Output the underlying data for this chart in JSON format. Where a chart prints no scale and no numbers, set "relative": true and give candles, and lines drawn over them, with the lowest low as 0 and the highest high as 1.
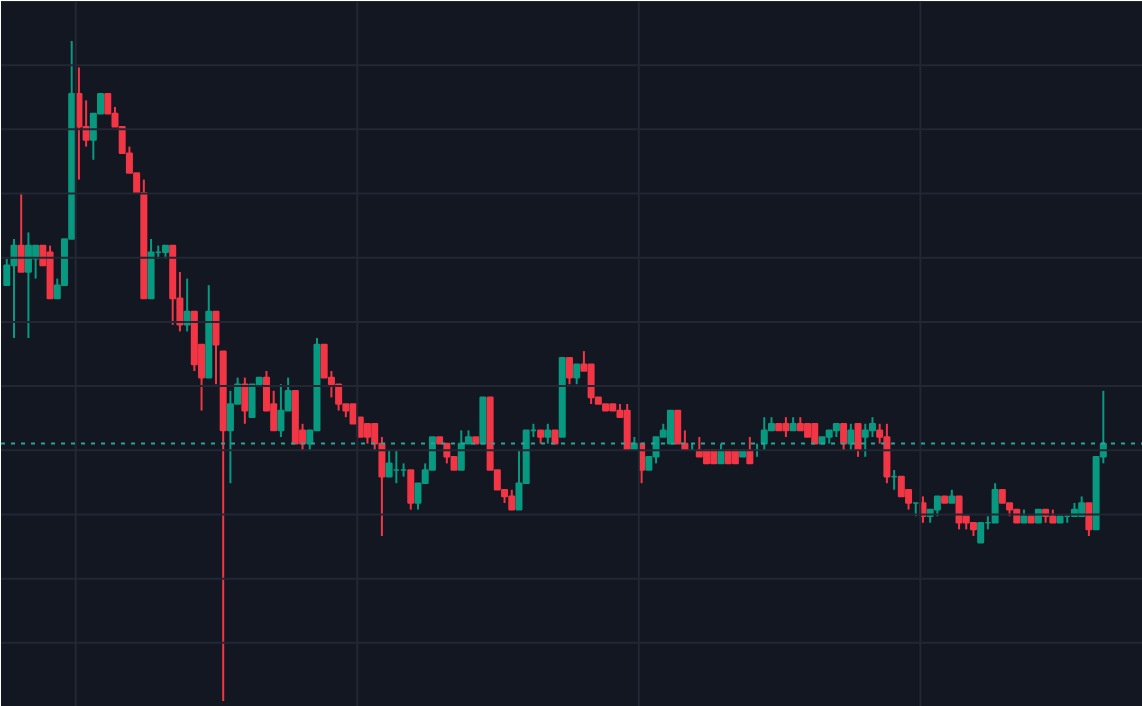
{
  "chart_data": {
    "type": "candlestick",
    "relative": true,
    "grid": true,
    "categories": [
      null,
      null,
      null,
      null,
      null,
      null,
      null,
      null,
      null,
      null,
      null,
      null,
      null,
      null,
      null,
      null,
      null,
      null,
      null,
      null,
      null,
      null,
      null,
      null,
      null,
      null,
      null,
      null,
      null,
      null,
      null,
      null,
      null,
      null,
      null,
      null,
      null,
      null,
      null,
      null,
      null,
      null,
      null,
      null,
      null,
      null,
      null,
      null,
      null,
      null,
      null,
      null,
      null,
      null,
      null,
      null,
      null,
      null,
      null,
      null,
      null,
      null,
      null,
      null,
      null,
      null,
      null,
      null,
      null,
      null,
      null,
      null,
      null,
      null,
      null,
      null,
      null,
      null,
      null,
      null,
      null,
      null,
      null,
      null,
      null,
      null,
      null,
      null,
      null,
      null,
      null,
      null,
      null,
      null,
      null,
      null,
      null,
      null,
      null,
      null,
      null,
      null,
      null,
      null,
      null,
      null,
      null,
      null,
      null,
      null,
      null,
      null,
      null,
      null,
      null,
      null,
      null,
      null,
      null,
      null,
      null,
      null,
      null,
      null,
      null,
      null,
      null,
      null,
      null,
      null,
      null,
      null,
      null,
      null,
      null,
      null,
      null,
      null,
      null,
      null,
      null,
      null,
      null,
      null,
      null,
      null,
      null,
      null,
      null,
      null,
      null,
      null,
      null
    ],
    "ohlc": [
      [
        0.63,
        0.67,
        0.63,
        0.66
      ],
      [
        0.66,
        0.7,
        0.55,
        0.69
      ],
      [
        0.69,
        0.77,
        0.65,
        0.65
      ],
      [
        0.65,
        0.71,
        0.55,
        0.69
      ],
      [
        0.67,
        0.69,
        0.64,
        0.69
      ],
      [
        0.69,
        0.69,
        0.66,
        0.66
      ],
      [
        0.68,
        0.69,
        0.61,
        0.61
      ],
      [
        0.61,
        0.64,
        0.61,
        0.63
      ],
      [
        0.63,
        0.7,
        0.63,
        0.7
      ],
      [
        0.7,
        1.0,
        0.7,
        0.92
      ],
      [
        0.92,
        0.96,
        0.79,
        0.87
      ],
      [
        0.87,
        0.91,
        0.84,
        0.85
      ],
      [
        0.85,
        0.89,
        0.82,
        0.89
      ],
      [
        0.89,
        0.92,
        0.89,
        0.92
      ],
      [
        0.92,
        0.92,
        0.89,
        0.89
      ],
      [
        0.89,
        0.9,
        0.87,
        0.87
      ],
      [
        0.87,
        0.87,
        0.83,
        0.83
      ],
      [
        0.83,
        0.84,
        0.8,
        0.8
      ],
      [
        0.8,
        0.8,
        0.77,
        0.77
      ],
      [
        0.77,
        0.79,
        0.61,
        0.61
      ],
      [
        0.61,
        0.7,
        0.61,
        0.68
      ],
      [
        0.68,
        0.69,
        0.67,
        0.68
      ],
      [
        0.68,
        0.69,
        0.67,
        0.69
      ],
      [
        0.69,
        0.69,
        0.57,
        0.61
      ],
      [
        0.61,
        0.65,
        0.56,
        0.57
      ],
      [
        0.57,
        0.64,
        0.56,
        0.59
      ],
      [
        0.59,
        0.59,
        0.5,
        0.51
      ],
      [
        0.54,
        0.54,
        0.44,
        0.49
      ],
      [
        0.49,
        0.63,
        0.49,
        0.59
      ],
      [
        0.59,
        0.59,
        0.48,
        0.54
      ],
      [
        0.53,
        0.53,
        0.0,
        0.41
      ],
      [
        0.41,
        0.47,
        0.33,
        0.45
      ],
      [
        0.45,
        0.49,
        0.45,
        0.48
      ],
      [
        0.48,
        0.49,
        0.42,
        0.44
      ],
      [
        0.43,
        0.48,
        0.43,
        0.48
      ],
      [
        0.48,
        0.49,
        0.48,
        0.49
      ],
      [
        0.49,
        0.5,
        0.44,
        0.44
      ],
      [
        0.45,
        0.47,
        0.41,
        0.41
      ],
      [
        0.41,
        0.48,
        0.4,
        0.44
      ],
      [
        0.44,
        0.49,
        0.44,
        0.47
      ],
      [
        0.47,
        0.47,
        0.39,
        0.39
      ],
      [
        0.41,
        0.42,
        0.38,
        0.39
      ],
      [
        0.39,
        0.41,
        0.38,
        0.41
      ],
      [
        0.41,
        0.55,
        0.41,
        0.54
      ],
      [
        0.54,
        0.54,
        0.49,
        0.49
      ],
      [
        0.49,
        0.5,
        0.46,
        0.48
      ],
      [
        0.48,
        0.48,
        0.44,
        0.45
      ],
      [
        0.45,
        0.45,
        0.43,
        0.44
      ],
      [
        0.45,
        0.45,
        0.42,
        0.42
      ],
      [
        0.43,
        0.43,
        0.4,
        0.4
      ],
      [
        0.42,
        0.42,
        0.39,
        0.4
      ],
      [
        0.42,
        0.42,
        0.38,
        0.39
      ],
      [
        0.39,
        0.4,
        0.25,
        0.34
      ],
      [
        0.34,
        0.38,
        0.34,
        0.36
      ],
      [
        0.35,
        0.38,
        0.33,
        0.35
      ],
      [
        0.35,
        0.36,
        0.34,
        0.35
      ],
      [
        0.35,
        0.35,
        0.29,
        0.3
      ],
      [
        0.3,
        0.33,
        0.29,
        0.33
      ],
      [
        0.33,
        0.36,
        0.33,
        0.35
      ],
      [
        0.35,
        0.4,
        0.35,
        0.4
      ],
      [
        0.4,
        0.4,
        0.39,
        0.39
      ],
      [
        0.39,
        0.39,
        0.36,
        0.37
      ],
      [
        0.37,
        0.37,
        0.35,
        0.35
      ],
      [
        0.35,
        0.41,
        0.35,
        0.39
      ],
      [
        0.39,
        0.41,
        0.39,
        0.4
      ],
      [
        0.4,
        0.4,
        0.39,
        0.39
      ],
      [
        0.39,
        0.46,
        0.39,
        0.46
      ],
      [
        0.46,
        0.46,
        0.35,
        0.35
      ],
      [
        0.35,
        0.35,
        0.32,
        0.32
      ],
      [
        0.32,
        0.32,
        0.3,
        0.31
      ],
      [
        0.31,
        0.32,
        0.29,
        0.29
      ],
      [
        0.29,
        0.38,
        0.29,
        0.33
      ],
      [
        0.33,
        0.41,
        0.33,
        0.41
      ],
      [
        0.41,
        0.42,
        0.4,
        0.41
      ],
      [
        0.41,
        0.41,
        0.39,
        0.4
      ],
      [
        0.4,
        0.42,
        0.39,
        0.41
      ],
      [
        0.41,
        0.41,
        0.39,
        0.39
      ],
      [
        0.4,
        0.52,
        0.4,
        0.52
      ],
      [
        0.52,
        0.52,
        0.48,
        0.49
      ],
      [
        0.49,
        0.51,
        0.48,
        0.51
      ],
      [
        0.51,
        0.53,
        0.5,
        0.5
      ],
      [
        0.51,
        0.51,
        0.45,
        0.46
      ],
      [
        0.46,
        0.46,
        0.45,
        0.45
      ],
      [
        0.45,
        0.45,
        0.44,
        0.44
      ],
      [
        0.45,
        0.45,
        0.44,
        0.44
      ],
      [
        0.44,
        0.45,
        0.43,
        0.43
      ],
      [
        0.44,
        0.45,
        0.38,
        0.38
      ],
      [
        0.38,
        0.4,
        0.38,
        0.39
      ],
      [
        0.39,
        0.39,
        0.33,
        0.35
      ],
      [
        0.35,
        0.37,
        0.35,
        0.37
      ],
      [
        0.37,
        0.4,
        0.36,
        0.4
      ],
      [
        0.4,
        0.42,
        0.4,
        0.41
      ],
      [
        0.39,
        0.44,
        0.39,
        0.44
      ],
      [
        0.44,
        0.44,
        0.39,
        0.39
      ],
      [
        0.39,
        0.41,
        0.38,
        0.38
      ],
      [
        0.38,
        0.39,
        0.38,
        0.38
      ],
      [
        0.38,
        0.4,
        0.37,
        0.37
      ],
      [
        0.38,
        0.38,
        0.36,
        0.36
      ],
      [
        0.38,
        0.38,
        0.36,
        0.36
      ],
      [
        0.36,
        0.39,
        0.36,
        0.38
      ],
      [
        0.38,
        0.38,
        0.36,
        0.36
      ],
      [
        0.38,
        0.38,
        0.36,
        0.36
      ],
      [
        0.37,
        0.38,
        0.37,
        0.38
      ],
      [
        0.38,
        0.4,
        0.36,
        0.36
      ],
      [
        0.38,
        0.39,
        0.37,
        0.38
      ],
      [
        0.39,
        0.43,
        0.38,
        0.41
      ],
      [
        0.41,
        0.43,
        0.41,
        0.42
      ],
      [
        0.42,
        0.42,
        0.41,
        0.41
      ],
      [
        0.42,
        0.43,
        0.4,
        0.41
      ],
      [
        0.41,
        0.43,
        0.41,
        0.42
      ],
      [
        0.42,
        0.43,
        0.41,
        0.41
      ],
      [
        0.42,
        0.42,
        0.4,
        0.4
      ],
      [
        0.42,
        0.42,
        0.39,
        0.39
      ],
      [
        0.39,
        0.4,
        0.39,
        0.4
      ],
      [
        0.4,
        0.41,
        0.39,
        0.41
      ],
      [
        0.41,
        0.42,
        0.4,
        0.42
      ],
      [
        0.42,
        0.42,
        0.38,
        0.39
      ],
      [
        0.39,
        0.42,
        0.38,
        0.41
      ],
      [
        0.42,
        0.42,
        0.37,
        0.38
      ],
      [
        0.4,
        0.42,
        0.37,
        0.41
      ],
      [
        0.41,
        0.43,
        0.4,
        0.42
      ],
      [
        0.41,
        0.42,
        0.39,
        0.4
      ],
      [
        0.4,
        0.42,
        0.33,
        0.34
      ],
      [
        0.34,
        0.35,
        0.32,
        0.34
      ],
      [
        0.34,
        0.34,
        0.31,
        0.31
      ],
      [
        0.32,
        0.32,
        0.29,
        0.3
      ],
      [
        0.3,
        0.3,
        0.28,
        0.3
      ],
      [
        0.3,
        0.31,
        0.27,
        0.28
      ],
      [
        0.28,
        0.29,
        0.27,
        0.29
      ],
      [
        0.29,
        0.31,
        0.28,
        0.31
      ],
      [
        0.31,
        0.31,
        0.3,
        0.3
      ],
      [
        0.3,
        0.32,
        0.3,
        0.31
      ],
      [
        0.31,
        0.31,
        0.26,
        0.27
      ],
      [
        0.28,
        0.28,
        0.26,
        0.27
      ],
      [
        0.27,
        0.27,
        0.25,
        0.26
      ],
      [
        0.24,
        0.27,
        0.24,
        0.27
      ],
      [
        0.27,
        0.28,
        0.26,
        0.27
      ],
      [
        0.27,
        0.33,
        0.27,
        0.32
      ],
      [
        0.32,
        0.32,
        0.3,
        0.3
      ],
      [
        0.3,
        0.3,
        0.28,
        0.29
      ],
      [
        0.29,
        0.29,
        0.27,
        0.27
      ],
      [
        0.27,
        0.29,
        0.27,
        0.28
      ],
      [
        0.28,
        0.28,
        0.27,
        0.27
      ],
      [
        0.27,
        0.29,
        0.27,
        0.29
      ],
      [
        0.29,
        0.29,
        0.27,
        0.28
      ],
      [
        0.28,
        0.29,
        0.27,
        0.27
      ],
      [
        0.27,
        0.28,
        0.27,
        0.28
      ],
      [
        0.28,
        0.28,
        0.27,
        0.28
      ],
      [
        0.28,
        0.3,
        0.28,
        0.29
      ],
      [
        0.28,
        0.31,
        0.28,
        0.3
      ],
      [
        0.3,
        0.3,
        0.25,
        0.26
      ],
      [
        0.26,
        0.37,
        0.26,
        0.37
      ],
      [
        0.37,
        0.47,
        0.36,
        0.39
      ]
    ],
    "ref_lines": [
      {
        "axis": "y",
        "value": 0.39,
        "color": "#26a69a",
        "line_style": "dotted"
      }
    ]
  }
}
